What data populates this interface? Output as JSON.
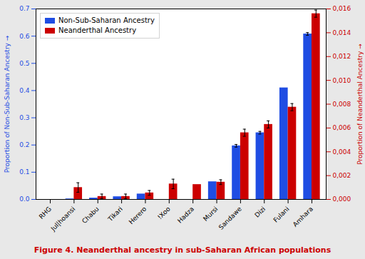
{
  "chart_data": {
    "type": "bar",
    "caption": "Figure 4.  Neanderthal ancestry in sub-Saharan African populations",
    "categories": [
      "RHG",
      "Jul|hoansi",
      "Chabu",
      "Tikari",
      "Herero",
      "!Xoo",
      "Hadza",
      "Mursi",
      "Sandawe",
      "Dizi",
      "Fulani",
      "Amhara"
    ],
    "series": [
      {
        "name": "Non-Sub-Saharan Ancestry",
        "color": "#1f4de3",
        "values": [
          0.0,
          0.002,
          0.005,
          0.01,
          0.02,
          0.0,
          0.0,
          0.065,
          0.197,
          0.245,
          0.41,
          0.608
        ],
        "errors": [
          0.0,
          0.0,
          0.0,
          0.0,
          0.0,
          0.0,
          0.0,
          0.0,
          0.005,
          0.005,
          0.0,
          0.005
        ]
      },
      {
        "name": "Neanderthal Ancestry",
        "color": "#cc0000",
        "axis": "y2",
        "values": [
          0.0,
          0.001,
          0.00025,
          0.00025,
          0.00055,
          0.0013,
          0.00125,
          0.00145,
          0.0056,
          0.0063,
          0.00775,
          0.0156
        ],
        "errors": [
          0.0,
          0.0004,
          0.0002,
          0.0002,
          0.0002,
          0.0004,
          0.0,
          0.0002,
          0.0003,
          0.0003,
          0.0003,
          0.0003
        ]
      }
    ],
    "ylabel": "Proportion of Non-Sub-Saharan Ancestry",
    "y2label": "Proportion of Neanderthal Ancestry",
    "ylim": [
      0,
      0.7
    ],
    "yticks": [
      {
        "value": 0.0,
        "label": "0.0"
      },
      0.1,
      0.2,
      0.3,
      0.4,
      0.5,
      0.6,
      0.7
    ],
    "y2lim": [
      0,
      0.016
    ],
    "y2ticks": [
      {
        "value": 0.0,
        "label": "0,000"
      },
      {
        "value": 0.002,
        "label": "0,002"
      },
      {
        "value": 0.004,
        "label": "0,004"
      },
      {
        "value": 0.006,
        "label": "0,006"
      },
      {
        "value": 0.008,
        "label": "0,008"
      },
      {
        "value": 0.01,
        "label": "0,010"
      },
      {
        "value": 0.012,
        "label": "0,012"
      },
      {
        "value": 0.014,
        "label": "0,014"
      },
      {
        "value": 0.016,
        "label": "0,016"
      }
    ],
    "grid": false,
    "legend": "upper left"
  }
}
